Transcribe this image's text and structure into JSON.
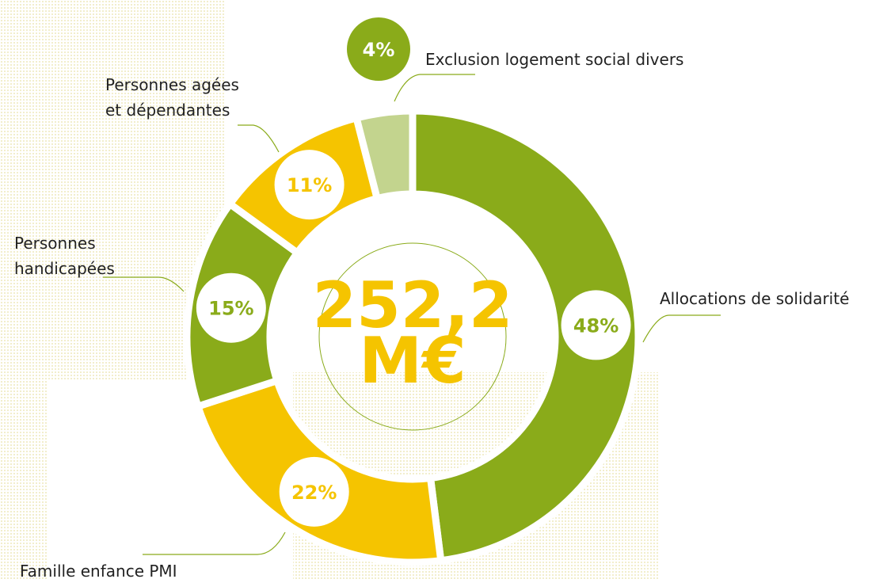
{
  "chart_data": {
    "type": "donut",
    "categories": [
      "Allocations de solidarité",
      "Famille enfance PMI",
      "Personnes\nhandicapées",
      "Personnes agées\net dépendantes",
      "Exclusion logement social divers"
    ],
    "values": [
      48,
      22,
      15,
      11,
      4
    ],
    "value_labels": [
      "48%",
      "22%",
      "15%",
      "11%",
      "4%"
    ],
    "colors": [
      "#8aab1a",
      "#f5c400",
      "#8aab1a",
      "#f5c400",
      "#c3d48e"
    ],
    "center_label": "252,2\nM€"
  }
}
